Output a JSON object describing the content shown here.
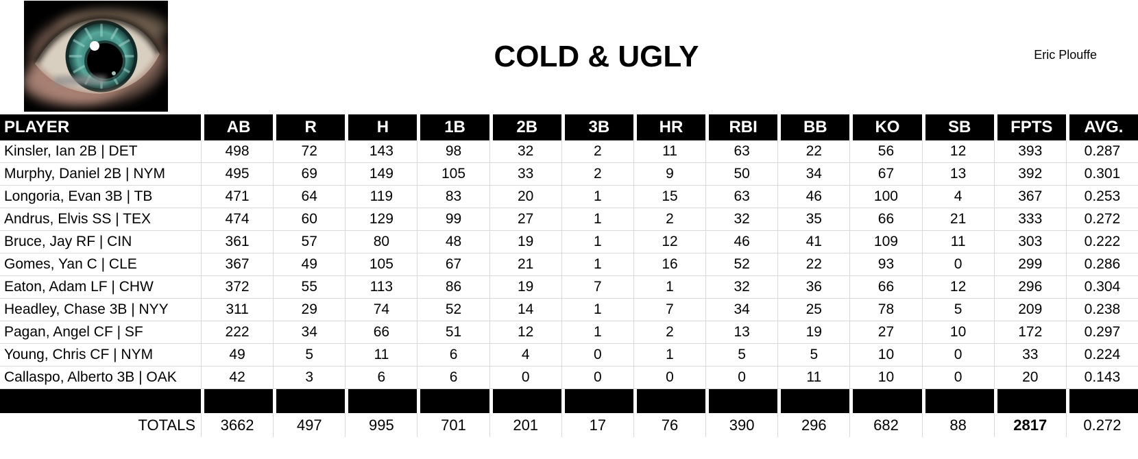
{
  "header": {
    "title": "COLD & UGLY",
    "author": "Eric Plouffe",
    "logo": "eye-logo"
  },
  "colors": {
    "header_bg": "#000000",
    "header_text": "#ffffff",
    "gridline": "#d9d9d9",
    "iris_teal": "#3c837b",
    "skin_pink": "#b98e80"
  },
  "table": {
    "columns": [
      "PLAYER",
      "AB",
      "R",
      "H",
      "1B",
      "2B",
      "3B",
      "HR",
      "RBI",
      "BB",
      "KO",
      "SB",
      "FPTS",
      "AVG."
    ],
    "rows": [
      {
        "player": "Kinsler, Ian 2B | DET",
        "stats": [
          "498",
          "72",
          "143",
          "98",
          "32",
          "2",
          "11",
          "63",
          "22",
          "56",
          "12",
          "393",
          "0.287"
        ]
      },
      {
        "player": "Murphy, Daniel 2B | NYM",
        "stats": [
          "495",
          "69",
          "149",
          "105",
          "33",
          "2",
          "9",
          "50",
          "34",
          "67",
          "13",
          "392",
          "0.301"
        ]
      },
      {
        "player": "Longoria, Evan 3B | TB",
        "stats": [
          "471",
          "64",
          "119",
          "83",
          "20",
          "1",
          "15",
          "63",
          "46",
          "100",
          "4",
          "367",
          "0.253"
        ]
      },
      {
        "player": "Andrus, Elvis SS | TEX",
        "stats": [
          "474",
          "60",
          "129",
          "99",
          "27",
          "1",
          "2",
          "32",
          "35",
          "66",
          "21",
          "333",
          "0.272"
        ]
      },
      {
        "player": "Bruce, Jay RF | CIN",
        "stats": [
          "361",
          "57",
          "80",
          "48",
          "19",
          "1",
          "12",
          "46",
          "41",
          "109",
          "11",
          "303",
          "0.222"
        ]
      },
      {
        "player": "Gomes, Yan C | CLE",
        "stats": [
          "367",
          "49",
          "105",
          "67",
          "21",
          "1",
          "16",
          "52",
          "22",
          "93",
          "0",
          "299",
          "0.286"
        ]
      },
      {
        "player": "Eaton, Adam LF | CHW",
        "stats": [
          "372",
          "55",
          "113",
          "86",
          "19",
          "7",
          "1",
          "32",
          "36",
          "66",
          "12",
          "296",
          "0.304"
        ]
      },
      {
        "player": "Headley, Chase 3B | NYY",
        "stats": [
          "311",
          "29",
          "74",
          "52",
          "14",
          "1",
          "7",
          "34",
          "25",
          "78",
          "5",
          "209",
          "0.238"
        ]
      },
      {
        "player": "Pagan, Angel CF | SF",
        "stats": [
          "222",
          "34",
          "66",
          "51",
          "12",
          "1",
          "2",
          "13",
          "19",
          "27",
          "10",
          "172",
          "0.297"
        ]
      },
      {
        "player": "Young, Chris CF | NYM",
        "stats": [
          "49",
          "5",
          "11",
          "6",
          "4",
          "0",
          "1",
          "5",
          "5",
          "10",
          "0",
          "33",
          "0.224"
        ]
      },
      {
        "player": "Callaspo, Alberto 3B | OAK",
        "stats": [
          "42",
          "3",
          "6",
          "6",
          "0",
          "0",
          "0",
          "0",
          "11",
          "10",
          "0",
          "20",
          "0.143"
        ]
      }
    ],
    "totals_label": "TOTALS",
    "totals": [
      "3662",
      "497",
      "995",
      "701",
      "201",
      "17",
      "76",
      "390",
      "296",
      "682",
      "88",
      "2817",
      "0.272"
    ],
    "totals_bold_index": 11
  }
}
